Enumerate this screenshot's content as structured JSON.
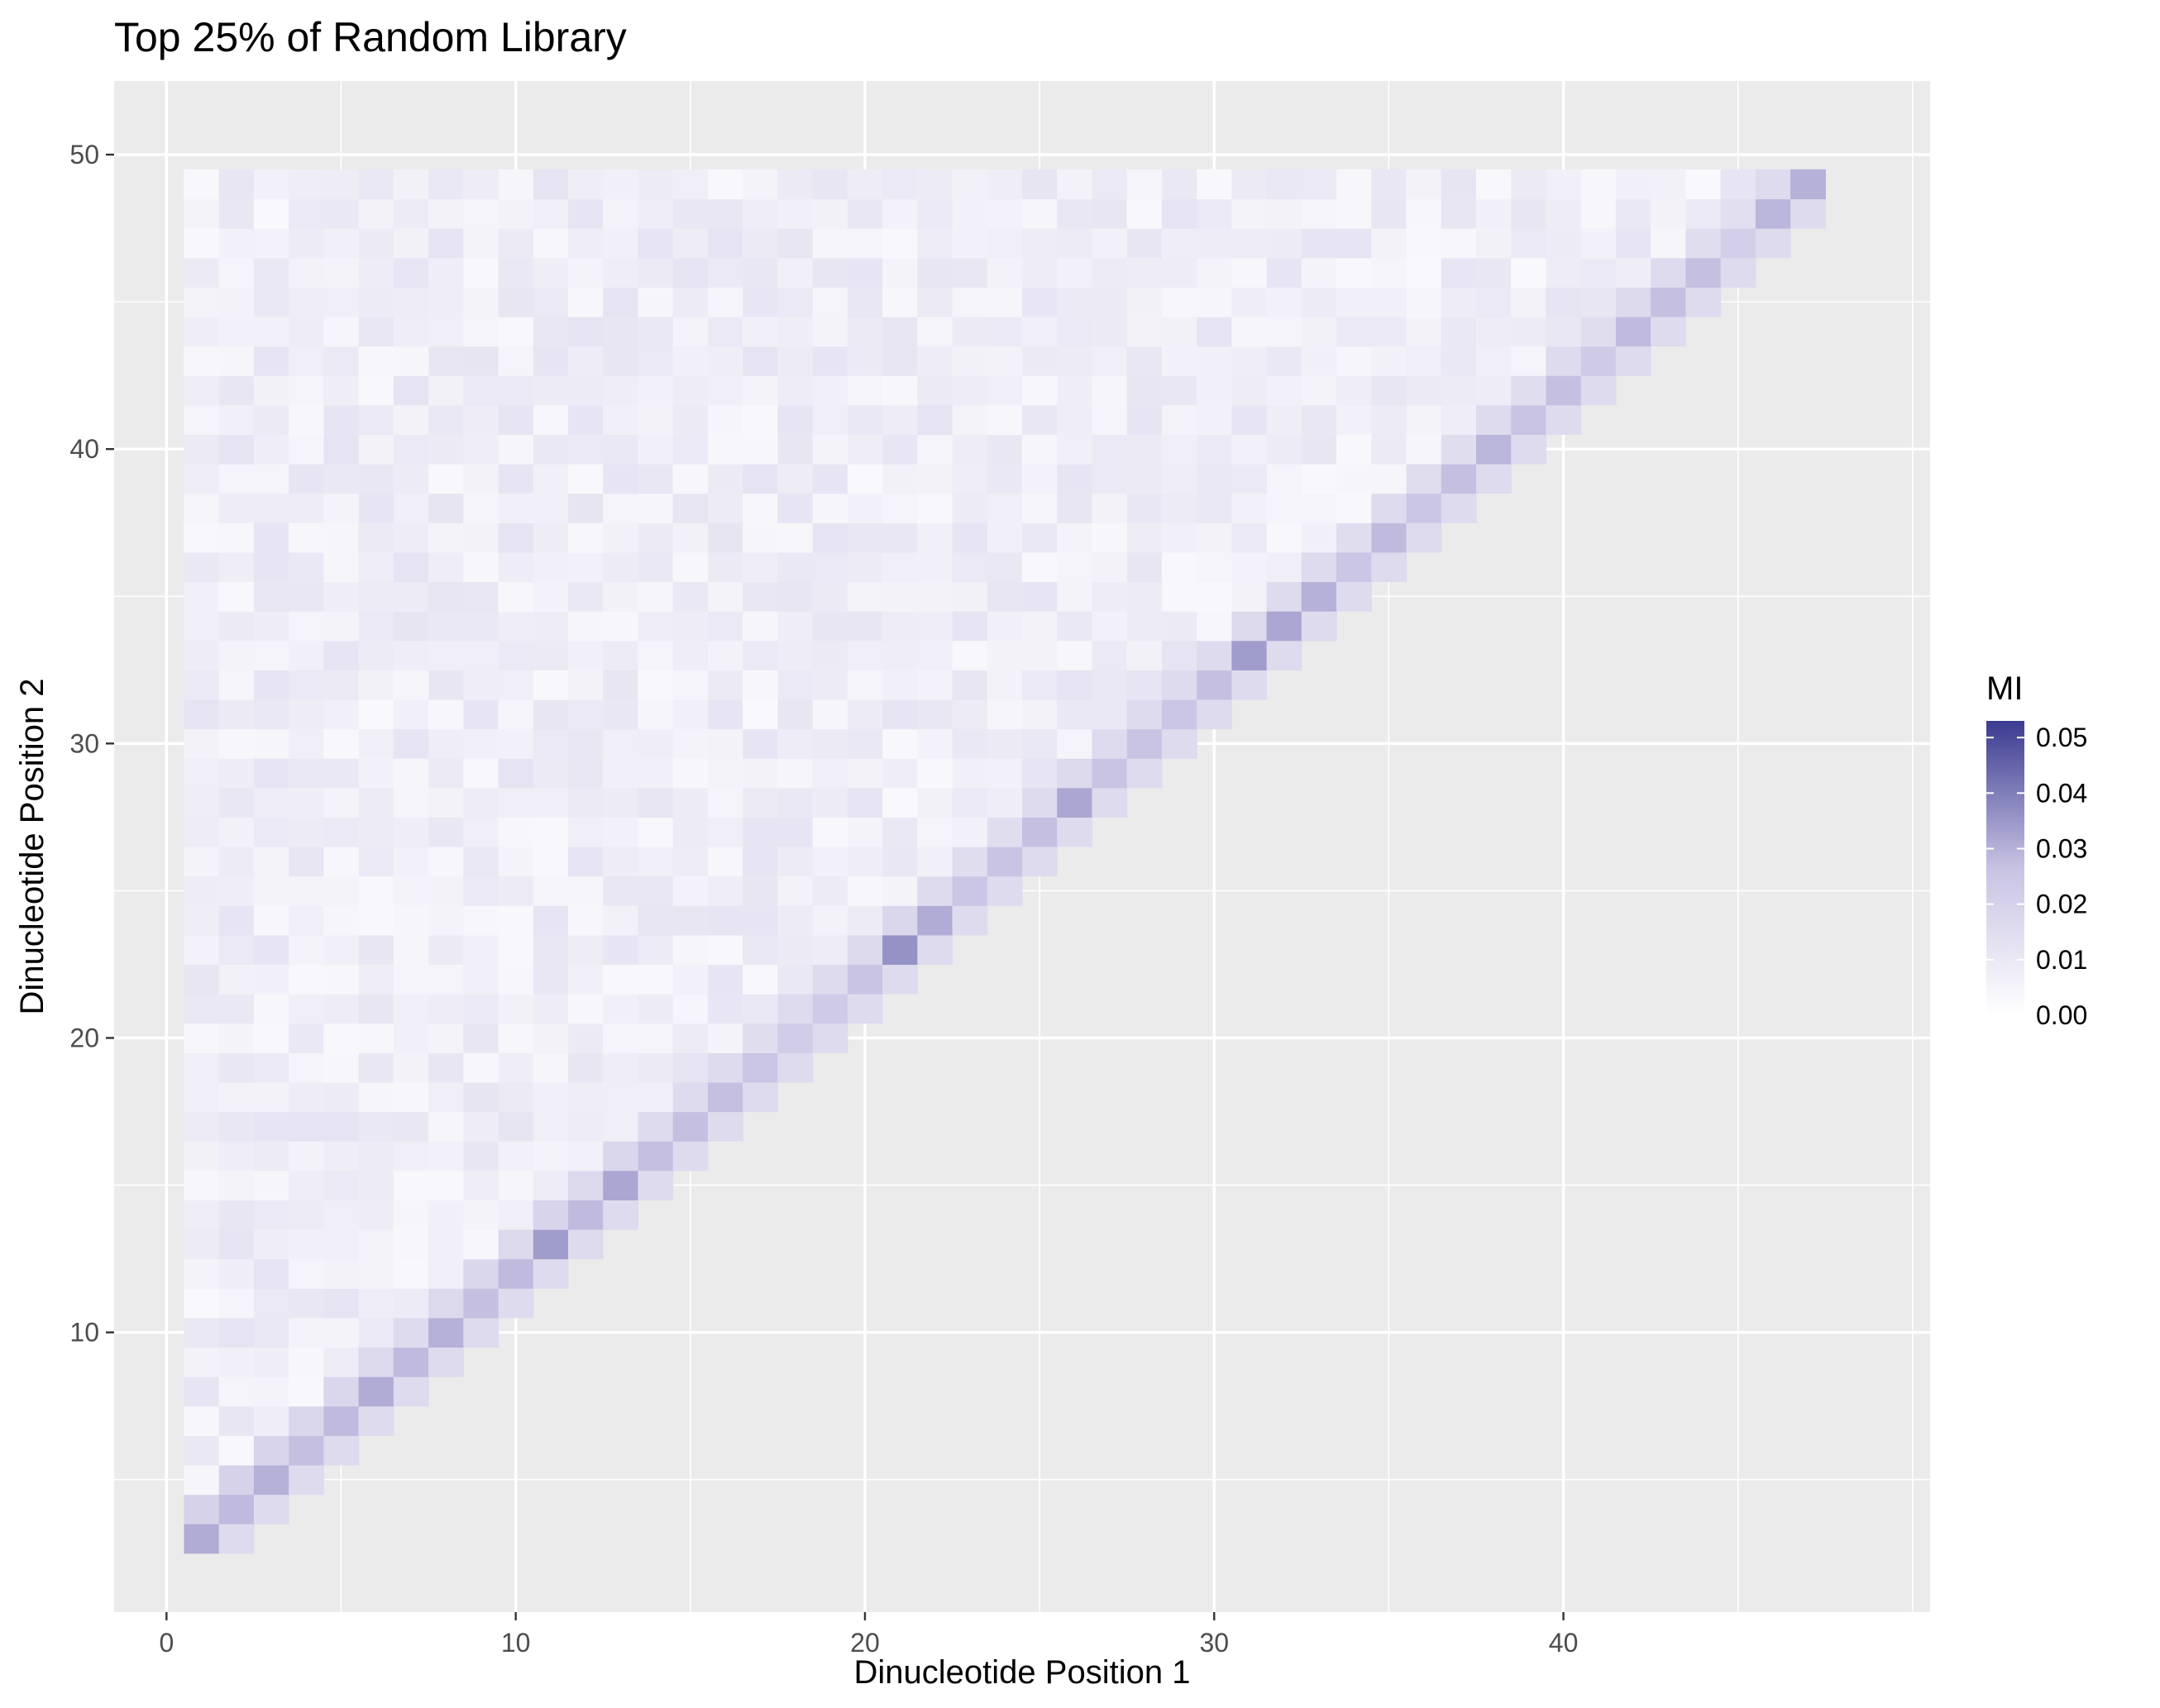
{
  "chart_data": {
    "type": "heatmap",
    "title": "Top 25% of Random Library",
    "xlabel": "Dinucleotide Position 1",
    "ylabel": "Dinucleotide Position 2",
    "xlim": [
      -1.5,
      50.5
    ],
    "ylim": [
      0.5,
      52.5
    ],
    "x_ticks": [
      0,
      10,
      20,
      30,
      40
    ],
    "y_ticks": [
      10,
      20,
      30,
      40,
      50
    ],
    "x_range_cells": [
      1,
      47
    ],
    "y_range_cells": [
      3,
      49
    ],
    "cell_rule": "one cell for every pair with y > x",
    "panel_background": "#ebebeb",
    "grid_color": "#ffffff",
    "grid": true,
    "legend": {
      "title": "MI",
      "placement": "right",
      "ticks": [
        "0.00",
        "0.01",
        "0.02",
        "0.03",
        "0.04",
        "0.05"
      ],
      "tick_values": [
        0,
        0.01,
        0.02,
        0.03,
        0.04,
        0.05
      ],
      "range": [
        0,
        0.053
      ],
      "color_low": "#ffffff",
      "color_high": "#3b3b91"
    },
    "diagonal_mi": [
      0.031,
      0.028,
      0.03,
      0.027,
      0.028,
      0.031,
      0.028,
      0.03,
      0.027,
      0.028,
      0.034,
      0.028,
      0.032,
      0.027,
      0.027,
      0.027,
      0.025,
      0.022,
      0.023,
      0.026,
      0.036,
      0.031,
      0.025,
      0.026,
      0.027,
      0.032,
      0.026,
      0.026,
      0.025,
      0.027,
      0.034,
      0.032,
      0.03,
      0.025,
      0.028,
      0.025,
      0.027,
      0.029,
      0.026,
      0.027,
      0.023,
      0.028,
      0.027,
      0.027,
      0.021,
      0.029,
      0.03
    ],
    "near_diagonal_mi": [
      0.02,
      0.02,
      0.019,
      0.018,
      0.018,
      0.017,
      0.016,
      0.017,
      0.018,
      0.017,
      0.019,
      0.017,
      0.018,
      0.016,
      0.016,
      0.016,
      0.015,
      0.016,
      0.016,
      0.017,
      0.018,
      0.016,
      0.015,
      0.015,
      0.016,
      0.017,
      0.016,
      0.016,
      0.016,
      0.016,
      0.017,
      0.016,
      0.016,
      0.015,
      0.016,
      0.015,
      0.015,
      0.016,
      0.015,
      0.016,
      0.015,
      0.017,
      0.016,
      0.015,
      0.014,
      0.016
    ],
    "background_mi_range": [
      0.003,
      0.012
    ]
  }
}
